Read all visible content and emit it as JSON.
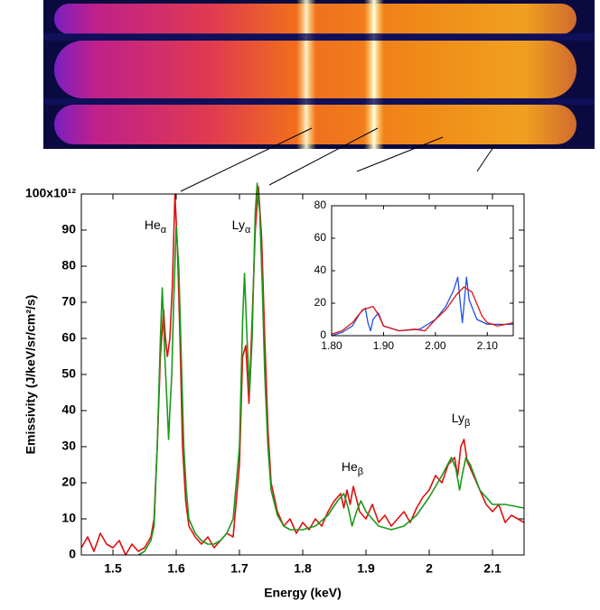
{
  "chart_data": [
    {
      "type": "line",
      "xlabel": "Energy (keV)",
      "ylabel": "Emissivity (J/keV/sr/cm²/s)",
      "xlim": [
        1.45,
        2.15
      ],
      "ylim": [
        0,
        100
      ],
      "xticks": [
        1.5,
        1.6,
        1.7,
        1.8,
        1.9,
        2,
        2.1
      ],
      "yticks": [
        0,
        10,
        20,
        30,
        40,
        50,
        60,
        70,
        80,
        90,
        {
          "value": 100,
          "label": "100x10¹²"
        }
      ],
      "annotations": [
        {
          "text": "He",
          "sub": "α"
        },
        {
          "text": "Ly",
          "sub": "α"
        },
        {
          "text": "He",
          "sub": "β"
        },
        {
          "text": "Ly",
          "sub": "β"
        }
      ],
      "series": [
        {
          "color": "#e01010",
          "x": [
            1.45,
            1.46,
            1.47,
            1.48,
            1.49,
            1.5,
            1.51,
            1.52,
            1.53,
            1.54,
            1.55,
            1.56,
            1.565,
            1.57,
            1.575,
            1.58,
            1.583,
            1.586,
            1.59,
            1.594,
            1.598,
            1.602,
            1.606,
            1.61,
            1.615,
            1.62,
            1.63,
            1.64,
            1.65,
            1.66,
            1.67,
            1.68,
            1.69,
            1.7,
            1.705,
            1.71,
            1.715,
            1.72,
            1.725,
            1.73,
            1.735,
            1.74,
            1.745,
            1.75,
            1.76,
            1.77,
            1.78,
            1.79,
            1.8,
            1.81,
            1.82,
            1.83,
            1.84,
            1.85,
            1.86,
            1.865,
            1.87,
            1.875,
            1.88,
            1.89,
            1.9,
            1.91,
            1.92,
            1.93,
            1.94,
            1.95,
            1.96,
            1.97,
            1.98,
            1.99,
            2,
            2.01,
            2.02,
            2.03,
            2.04,
            2.045,
            2.05,
            2.055,
            2.06,
            2.07,
            2.08,
            2.09,
            2.1,
            2.11,
            2.12,
            2.13,
            2.14,
            2.15
          ],
          "values": [
            2,
            5,
            1,
            6,
            3,
            2,
            4,
            0,
            3,
            1,
            2,
            5,
            10,
            30,
            55,
            68,
            60,
            55,
            60,
            75,
            100,
            85,
            60,
            30,
            15,
            8,
            5,
            3,
            5,
            2,
            4,
            6,
            5,
            25,
            55,
            58,
            42,
            65,
            90,
            102,
            88,
            60,
            35,
            20,
            12,
            8,
            10,
            6,
            9,
            7,
            10,
            8,
            12,
            15,
            17,
            13,
            18,
            14,
            19,
            12,
            10,
            14,
            9,
            11,
            8,
            10,
            12,
            9,
            13,
            16,
            18,
            22,
            20,
            25,
            27,
            22,
            30,
            32,
            26,
            22,
            18,
            14,
            12,
            14,
            9,
            11,
            10,
            9
          ]
        },
        {
          "color": "#1a9a1a",
          "x": [
            1.54,
            1.55,
            1.56,
            1.565,
            1.57,
            1.575,
            1.578,
            1.582,
            1.586,
            1.588,
            1.59,
            1.593,
            1.596,
            1.6,
            1.604,
            1.608,
            1.612,
            1.616,
            1.62,
            1.63,
            1.64,
            1.65,
            1.66,
            1.67,
            1.68,
            1.69,
            1.7,
            1.705,
            1.708,
            1.712,
            1.716,
            1.72,
            1.725,
            1.728,
            1.732,
            1.736,
            1.74,
            1.745,
            1.75,
            1.76,
            1.77,
            1.78,
            1.8,
            1.82,
            1.84,
            1.855,
            1.865,
            1.872,
            1.878,
            1.885,
            1.892,
            1.9,
            1.92,
            1.94,
            1.96,
            1.98,
            2,
            2.02,
            2.035,
            2.042,
            2.048,
            2.052,
            2.058,
            2.065,
            2.08,
            2.1,
            2.12,
            2.15
          ],
          "values": [
            0,
            1,
            4,
            8,
            30,
            60,
            74,
            55,
            40,
            32,
            40,
            50,
            70,
            91,
            80,
            55,
            30,
            18,
            10,
            6,
            4,
            3,
            3,
            4,
            6,
            10,
            30,
            65,
            78,
            60,
            45,
            60,
            95,
            103,
            95,
            75,
            50,
            30,
            18,
            11,
            8,
            7,
            7,
            8,
            11,
            15,
            17,
            13,
            8,
            12,
            15,
            12,
            8,
            7,
            8,
            11,
            16,
            22,
            27,
            24,
            18,
            22,
            27,
            25,
            18,
            14,
            14,
            13
          ]
        }
      ]
    },
    {
      "type": "line",
      "xlim": [
        1.8,
        2.15
      ],
      "ylim": [
        0,
        80
      ],
      "xticks": [
        {
          "value": 1.8,
          "label": "1.80"
        },
        {
          "value": 1.9,
          "label": "1.90"
        },
        {
          "value": 2,
          "label": "2.00"
        },
        {
          "value": 2.1,
          "label": "2.10"
        }
      ],
      "yticks": [
        0,
        20,
        40,
        60,
        80
      ],
      "series": [
        {
          "color": "#2050e0",
          "x": [
            1.8,
            1.82,
            1.84,
            1.855,
            1.865,
            1.87,
            1.875,
            1.88,
            1.89,
            1.9,
            1.93,
            1.97,
            2,
            2.02,
            2.035,
            2.043,
            2.048,
            2.052,
            2.056,
            2.06,
            2.065,
            2.08,
            2.1,
            2.15
          ],
          "values": [
            0,
            2,
            6,
            14,
            17,
            8,
            3,
            10,
            14,
            6,
            3,
            4,
            10,
            18,
            28,
            36,
            20,
            8,
            22,
            36,
            22,
            10,
            7,
            7
          ]
        },
        {
          "color": "#e01010",
          "x": [
            1.8,
            1.82,
            1.84,
            1.86,
            1.87,
            1.88,
            1.89,
            1.9,
            1.93,
            1.96,
            1.98,
            2,
            2.02,
            2.04,
            2.055,
            2.07,
            2.09,
            2.1,
            2.12,
            2.15
          ],
          "values": [
            1,
            3,
            8,
            16,
            17,
            18,
            13,
            6,
            3,
            4,
            3,
            10,
            16,
            25,
            30,
            27,
            12,
            8,
            6,
            8
          ]
        }
      ]
    }
  ]
}
